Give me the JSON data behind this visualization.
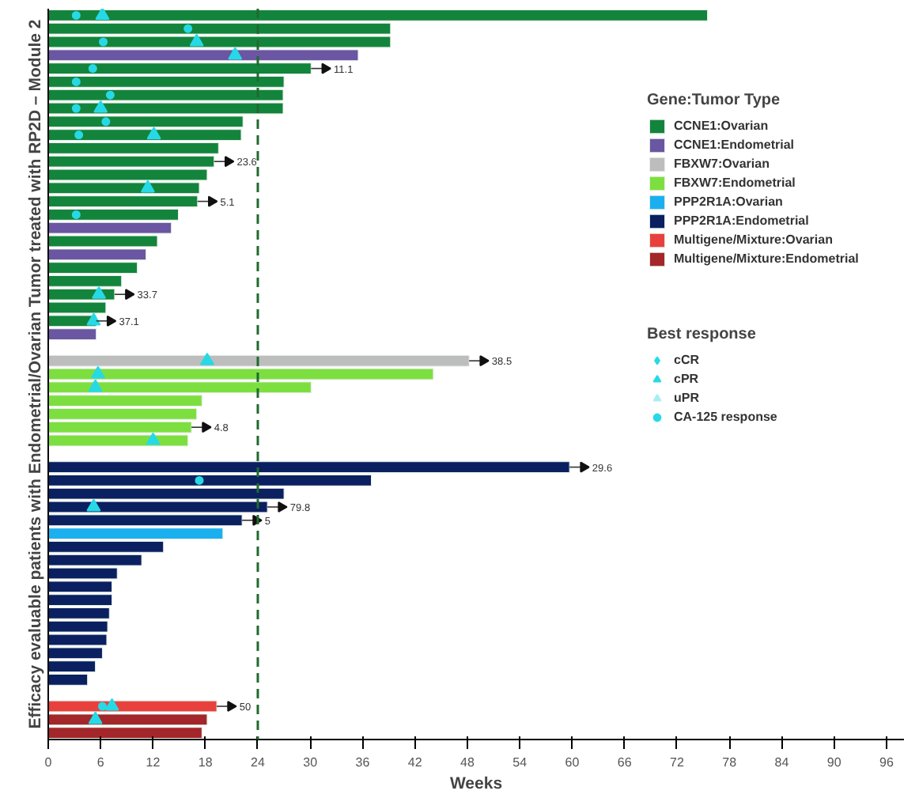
{
  "chart_data": {
    "type": "bar",
    "orientation": "horizontal",
    "xlabel": "Weeks",
    "ylabel": "Efficacy evaluable patients with Endometrial/Ovarian Tumor treated with RP2D – Module 2",
    "legend_title": [
      "Gene:Tumor Type",
      "Best response"
    ],
    "legend": "top right",
    "tick_labels": "x",
    "xlim": [
      0,
      98
    ],
    "xticks": [
      0,
      6,
      12,
      18,
      24,
      30,
      36,
      42,
      48,
      54,
      60,
      66,
      72,
      78,
      84,
      90,
      96
    ],
    "categories": [
      null,
      null,
      null,
      null,
      null,
      null,
      null,
      null,
      null,
      null,
      null,
      null,
      null,
      null,
      null,
      null,
      null,
      null,
      null,
      null,
      null,
      null,
      null,
      null,
      null,
      null,
      null,
      null,
      null,
      null,
      null,
      null,
      null,
      null,
      null,
      null,
      null,
      null,
      null,
      null,
      null,
      null,
      null,
      null,
      null,
      null,
      null,
      null,
      null,
      null,
      null,
      null,
      null,
      null,
      null
    ],
    "annotations": [
      {
        "text": "11.1",
        "x": 30.1
      },
      {
        "text": "23.6",
        "x": 19.0
      },
      {
        "text": "5.1",
        "x": 17.1
      },
      {
        "text": "33.7",
        "x": 7.6
      },
      {
        "text": "37.1",
        "x": 5.5
      },
      {
        "text": "38.5",
        "x": 48.2
      },
      {
        "text": "4.8",
        "x": 16.4
      },
      {
        "text": "29.6",
        "x": 59.7
      },
      {
        "text": "79.8",
        "x": 25.1
      },
      {
        "text": "5",
        "x": 22.2
      },
      {
        "text": "50",
        "x": 19.3
      }
    ],
    "ref_lines": [
      {
        "axis": "x",
        "value": 24,
        "color": "#1f6b2e",
        "line_style": "dashed"
      }
    ],
    "series": [
      {
        "name": "CCNE1:Ovarian",
        "color": "#13843c",
        "values": [
          75.5,
          39.2,
          39.2,
          null,
          30.1,
          27.0,
          26.9,
          26.9,
          22.3,
          22.1,
          19.5,
          19.0,
          18.2,
          17.3,
          17.1,
          14.9,
          null,
          12.5,
          null,
          10.2,
          8.4,
          7.6,
          6.6,
          5.5,
          null,
          null,
          null,
          null,
          null,
          null,
          null,
          null,
          null,
          null,
          null,
          null,
          null,
          null,
          null,
          null,
          null,
          null,
          null,
          null,
          null,
          null,
          null,
          null,
          null,
          null,
          null,
          null,
          null,
          null,
          null
        ]
      },
      {
        "name": "CCNE1:Endometrial",
        "color": "#6a56a2",
        "values": [
          null,
          null,
          null,
          35.5,
          null,
          null,
          null,
          null,
          null,
          null,
          null,
          null,
          null,
          null,
          null,
          null,
          14.1,
          null,
          11.2,
          null,
          null,
          null,
          null,
          null,
          5.5,
          null,
          null,
          null,
          null,
          null,
          null,
          null,
          null,
          null,
          null,
          null,
          null,
          null,
          null,
          null,
          null,
          null,
          null,
          null,
          null,
          null,
          null,
          null,
          null,
          null,
          null,
          null,
          null,
          null,
          null
        ]
      },
      {
        "name": "FBXW7:Ovarian",
        "color": "#bdbdbd",
        "values": [
          null,
          null,
          null,
          null,
          null,
          null,
          null,
          null,
          null,
          null,
          null,
          null,
          null,
          null,
          null,
          null,
          null,
          null,
          null,
          null,
          null,
          null,
          null,
          null,
          null,
          null,
          48.2,
          null,
          null,
          null,
          null,
          null,
          null,
          null,
          null,
          null,
          null,
          null,
          null,
          null,
          null,
          null,
          null,
          null,
          null,
          null,
          null,
          null,
          null,
          null,
          null,
          null,
          null,
          null,
          null
        ]
      },
      {
        "name": "FBXW7:Endometrial",
        "color": "#7ddf3f",
        "values": [
          null,
          null,
          null,
          null,
          null,
          null,
          null,
          null,
          null,
          null,
          null,
          null,
          null,
          null,
          null,
          null,
          null,
          null,
          null,
          null,
          null,
          null,
          null,
          null,
          null,
          null,
          null,
          44.1,
          30.1,
          17.6,
          17.0,
          16.4,
          16.0,
          null,
          null,
          null,
          null,
          null,
          null,
          null,
          null,
          null,
          null,
          null,
          null,
          null,
          null,
          null,
          null,
          null,
          null,
          null,
          null,
          null,
          null
        ]
      },
      {
        "name": "PPP2R1A:Ovarian",
        "color": "#1ab0f0",
        "values": [
          null,
          null,
          null,
          null,
          null,
          null,
          null,
          null,
          null,
          null,
          null,
          null,
          null,
          null,
          null,
          null,
          null,
          null,
          null,
          null,
          null,
          null,
          null,
          null,
          null,
          null,
          null,
          null,
          null,
          null,
          null,
          null,
          null,
          null,
          null,
          null,
          null,
          null,
          null,
          20.0,
          null,
          null,
          null,
          null,
          null,
          null,
          null,
          null,
          null,
          null,
          null,
          null,
          null,
          null,
          null
        ]
      },
      {
        "name": "PPP2R1A:Endometrial",
        "color": "#0a2060",
        "values": [
          null,
          null,
          null,
          null,
          null,
          null,
          null,
          null,
          null,
          null,
          null,
          null,
          null,
          null,
          null,
          null,
          null,
          null,
          null,
          null,
          null,
          null,
          null,
          null,
          null,
          null,
          null,
          null,
          null,
          null,
          null,
          null,
          null,
          null,
          59.7,
          37.0,
          27.0,
          25.1,
          22.2,
          null,
          13.2,
          10.7,
          7.9,
          7.3,
          7.3,
          7.0,
          6.8,
          6.7,
          6.2,
          5.4,
          4.5,
          null,
          null,
          null,
          null
        ]
      },
      {
        "name": "Multigene/Mixture:Ovarian",
        "color": "#e8413d",
        "values": [
          null,
          null,
          null,
          null,
          null,
          null,
          null,
          null,
          null,
          null,
          null,
          null,
          null,
          null,
          null,
          null,
          null,
          null,
          null,
          null,
          null,
          null,
          null,
          null,
          null,
          null,
          null,
          null,
          null,
          null,
          null,
          null,
          null,
          null,
          null,
          null,
          null,
          null,
          null,
          null,
          null,
          null,
          null,
          null,
          null,
          null,
          null,
          null,
          null,
          null,
          null,
          null,
          19.3,
          null,
          null
        ]
      },
      {
        "name": "Multigene/Mixture:Endometrial",
        "color": "#a3262a",
        "values": [
          null,
          null,
          null,
          null,
          null,
          null,
          null,
          null,
          null,
          null,
          null,
          null,
          null,
          null,
          null,
          null,
          null,
          null,
          null,
          null,
          null,
          null,
          null,
          null,
          null,
          null,
          null,
          null,
          null,
          null,
          null,
          null,
          null,
          null,
          null,
          null,
          null,
          null,
          null,
          null,
          null,
          null,
          null,
          null,
          null,
          null,
          null,
          null,
          null,
          null,
          null,
          null,
          null,
          18.2,
          17.6
        ]
      },
      {
        "name": "cCR",
        "type": "scatter",
        "marker": "diamond",
        "color": "#27d9e6",
        "values": [
          null,
          null,
          null,
          null,
          null,
          null,
          null,
          null,
          null,
          null,
          null,
          null,
          null,
          null,
          null,
          null,
          null,
          null,
          null,
          null,
          null,
          null,
          null,
          null,
          null,
          null,
          null,
          null,
          null,
          null,
          null,
          null,
          null,
          null,
          null,
          null,
          null,
          null,
          null,
          null,
          null,
          null,
          null,
          null,
          null,
          null,
          null,
          null,
          null,
          null,
          null,
          null,
          null,
          null,
          null
        ]
      },
      {
        "name": "cPR",
        "type": "scatter",
        "marker": "triangle",
        "color": "#27d9e6",
        "values": [
          6.2,
          null,
          17.0,
          21.4,
          null,
          null,
          null,
          6.0,
          null,
          12.1,
          null,
          null,
          null,
          11.4,
          null,
          null,
          null,
          null,
          null,
          null,
          null,
          5.8,
          null,
          5.2,
          null,
          null,
          18.2,
          5.7,
          5.4,
          null,
          null,
          null,
          12.0,
          null,
          null,
          null,
          null,
          5.2,
          null,
          null,
          null,
          null,
          null,
          null,
          null,
          null,
          null,
          null,
          null,
          null,
          null,
          null,
          7.3,
          5.4,
          null
        ]
      },
      {
        "name": "uPR",
        "type": "scatter",
        "marker": "triangle",
        "color": "#a8eef2",
        "values": [
          null,
          null,
          null,
          null,
          null,
          null,
          null,
          null,
          null,
          null,
          null,
          null,
          null,
          null,
          null,
          null,
          null,
          null,
          null,
          null,
          null,
          null,
          null,
          null,
          null,
          null,
          null,
          null,
          null,
          null,
          null,
          null,
          null,
          null,
          null,
          null,
          null,
          null,
          null,
          null,
          null,
          null,
          null,
          null,
          null,
          null,
          null,
          null,
          null,
          null,
          null,
          null,
          null,
          null,
          null
        ]
      },
      {
        "name": "CA-125 response",
        "type": "scatter",
        "marker": "circle",
        "color": "#27d9e6",
        "values": [
          3.2,
          16.0,
          6.3,
          null,
          5.1,
          3.2,
          7.1,
          3.2,
          6.6,
          3.5,
          null,
          null,
          null,
          null,
          null,
          3.2,
          null,
          null,
          null,
          null,
          null,
          null,
          null,
          null,
          null,
          null,
          null,
          null,
          null,
          null,
          null,
          null,
          null,
          null,
          null,
          17.3,
          null,
          null,
          null,
          null,
          null,
          null,
          null,
          null,
          null,
          null,
          null,
          null,
          null,
          null,
          null,
          null,
          6.2,
          null,
          null
        ]
      }
    ]
  }
}
